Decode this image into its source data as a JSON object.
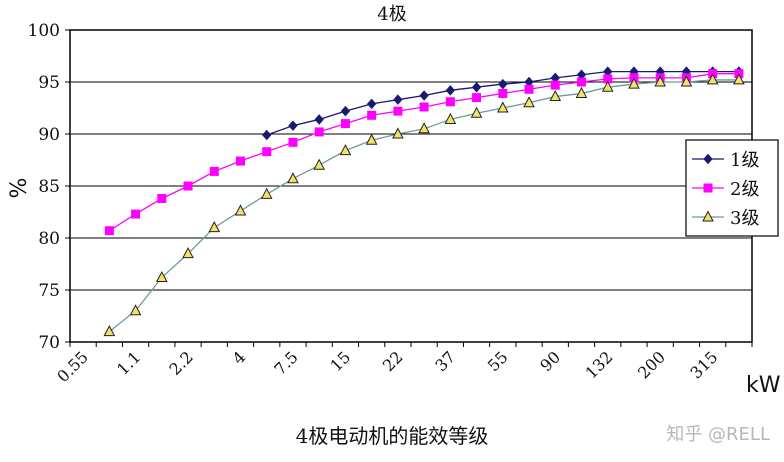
{
  "chart_data": {
    "type": "line",
    "title": "4极",
    "ylabel": "%",
    "xlabel": "kW",
    "ylim": [
      70,
      100
    ],
    "yticks": [
      70,
      75,
      80,
      85,
      90,
      95,
      100
    ],
    "x": [
      "0.55",
      "0.75",
      "1.1",
      "1.5",
      "2.2",
      "3",
      "4",
      "5.5",
      "7.5",
      "11",
      "15",
      "18.5",
      "22",
      "30",
      "37",
      "45",
      "55",
      "75",
      "90",
      "110",
      "132",
      "160",
      "200",
      "250",
      "315",
      "355"
    ],
    "xtick_labels": [
      "0.55",
      "1.1",
      "2.2",
      "4",
      "7.5",
      "15",
      "22",
      "37",
      "55",
      "90",
      "132",
      "200",
      "315"
    ],
    "grid": "horizontal",
    "legend_position": "right",
    "series": [
      {
        "name": "1级",
        "color": "#1a1a6e",
        "marker": "diamond",
        "values": [
          null,
          null,
          null,
          null,
          null,
          null,
          null,
          89.9,
          90.8,
          91.4,
          92.2,
          92.9,
          93.3,
          93.7,
          94.2,
          94.5,
          94.8,
          95.0,
          95.4,
          95.7,
          96.0,
          96.0,
          96.0,
          96.0,
          96.0,
          96.0
        ]
      },
      {
        "name": "2级",
        "color": "#ff00ff",
        "marker": "square",
        "values": [
          null,
          80.7,
          82.3,
          83.8,
          85.0,
          86.4,
          87.4,
          88.3,
          89.2,
          90.2,
          91.0,
          91.8,
          92.2,
          92.6,
          93.1,
          93.5,
          93.9,
          94.3,
          94.7,
          95.0,
          95.3,
          95.4,
          95.4,
          95.4,
          95.8,
          95.8
        ]
      },
      {
        "name": "3级",
        "color": "#6e9c9c",
        "marker": "triangle",
        "values": [
          null,
          71.0,
          73.0,
          76.2,
          78.5,
          81.0,
          82.6,
          84.2,
          85.7,
          87.0,
          88.4,
          89.4,
          90.0,
          90.5,
          91.4,
          92.0,
          92.5,
          93.0,
          93.6,
          93.9,
          94.5,
          94.8,
          95.0,
          95.0,
          95.2,
          95.2
        ]
      }
    ]
  },
  "caption": "4极电动机的能效等级",
  "watermark": "知乎 @RELL"
}
